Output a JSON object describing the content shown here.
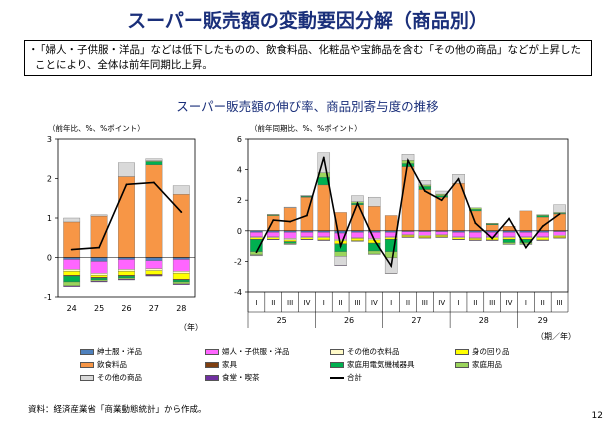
{
  "title": "スーパー販売額の変動要因分解（商品別）",
  "summary": {
    "bullet": "・",
    "text": "「婦人・子供服・洋品」などは低下したものの、飲食料品、化粧品や宝飾品を含む「その他の商品」などが上昇したことにより、全体は前年同期比上昇。"
  },
  "subtitle": "スーパー販売額の伸び率、商品別寄与度の推移",
  "source": "資料：経済産業省「商業動態統計」から作成。",
  "page_number": "12",
  "colors": {
    "mens": "#4f81bd",
    "womens": "#ff66ff",
    "other_clothing": "#fffac8",
    "personal": "#ffff00",
    "food": "#f79646",
    "furniture": "#7f3f10",
    "appliances": "#00b050",
    "household": "#9bd45c",
    "other": "#d9d9d9",
    "eating": "#7030a0",
    "total": "#000000"
  },
  "legend": [
    {
      "key": "mens",
      "label": "紳士服・洋品"
    },
    {
      "key": "womens",
      "label": "婦人・子供服・洋品"
    },
    {
      "key": "other_clothing",
      "label": "その他の衣料品"
    },
    {
      "key": "personal",
      "label": "身の回り品"
    },
    {
      "key": "food",
      "label": "飲食料品"
    },
    {
      "key": "furniture",
      "label": "家具"
    },
    {
      "key": "appliances",
      "label": "家庭用電気機械器具"
    },
    {
      "key": "household",
      "label": "家庭用品"
    },
    {
      "key": "other",
      "label": "その他の商品"
    },
    {
      "key": "eating",
      "label": "食堂・喫茶"
    },
    {
      "key": "total",
      "label": "合計"
    }
  ],
  "chart_data": [
    {
      "type": "bar",
      "stacked": true,
      "ylabel": "（前年比、%、%ポイント）",
      "xlabel": "（年）",
      "ylim": [
        -1,
        3
      ],
      "yticks": [
        -1,
        0,
        1,
        2,
        3
      ],
      "categories": [
        "24",
        "25",
        "26",
        "27",
        "28"
      ],
      "series": [
        {
          "key": "mens",
          "values": [
            -0.05,
            -0.1,
            -0.05,
            -0.08,
            -0.05
          ]
        },
        {
          "key": "womens",
          "values": [
            -0.25,
            -0.3,
            -0.25,
            -0.2,
            -0.3
          ]
        },
        {
          "key": "other_clothing",
          "values": [
            -0.05,
            -0.05,
            -0.05,
            -0.05,
            -0.05
          ]
        },
        {
          "key": "personal",
          "values": [
            -0.1,
            -0.05,
            -0.1,
            -0.1,
            -0.15
          ]
        },
        {
          "key": "food",
          "values": [
            0.9,
            1.05,
            2.05,
            2.35,
            1.6
          ]
        },
        {
          "key": "furniture",
          "values": [
            -0.02,
            -0.02,
            -0.02,
            -0.02,
            -0.02
          ]
        },
        {
          "key": "appliances",
          "values": [
            -0.15,
            -0.05,
            -0.05,
            0.08,
            -0.05
          ]
        },
        {
          "key": "household",
          "values": [
            -0.1,
            -0.03,
            -0.03,
            0.02,
            -0.05
          ]
        },
        {
          "key": "other",
          "values": [
            0.1,
            0.03,
            0.35,
            0.05,
            0.22
          ]
        },
        {
          "key": "eating",
          "values": [
            -0.02,
            -0.02,
            -0.02,
            -0.02,
            -0.02
          ]
        }
      ],
      "total": [
        0.2,
        0.25,
        1.85,
        1.9,
        1.15
      ]
    },
    {
      "type": "bar",
      "stacked": true,
      "ylabel": "（前年同期比、%、%ポイント）",
      "xlabel": "（期／年）",
      "ylim": [
        -4,
        6
      ],
      "yticks": [
        -4,
        -2,
        0,
        2,
        4,
        6
      ],
      "categories": [
        "I",
        "II",
        "III",
        "IV",
        "I",
        "II",
        "III",
        "IV",
        "I",
        "II",
        "III",
        "IV",
        "I",
        "II",
        "III",
        "IV",
        "I",
        "II",
        "III"
      ],
      "year_labels": [
        {
          "label": "25",
          "start": 0,
          "end": 3
        },
        {
          "label": "26",
          "start": 4,
          "end": 7
        },
        {
          "label": "27",
          "start": 8,
          "end": 11
        },
        {
          "label": "28",
          "start": 12,
          "end": 15
        },
        {
          "label": "29",
          "start": 16,
          "end": 18
        }
      ],
      "series": [
        {
          "key": "mens",
          "values": [
            -0.1,
            -0.1,
            -0.1,
            -0.1,
            -0.1,
            -0.15,
            -0.1,
            -0.1,
            -0.1,
            -0.05,
            -0.05,
            -0.05,
            -0.1,
            -0.1,
            -0.1,
            -0.1,
            -0.1,
            -0.1,
            -0.05
          ]
        },
        {
          "key": "womens",
          "values": [
            -0.3,
            -0.3,
            -0.4,
            -0.3,
            -0.3,
            -0.4,
            -0.35,
            -0.4,
            -0.3,
            -0.2,
            -0.25,
            -0.2,
            -0.3,
            -0.35,
            -0.3,
            -0.3,
            -0.3,
            -0.3,
            -0.25
          ]
        },
        {
          "key": "other_clothing",
          "values": [
            -0.05,
            -0.05,
            -0.1,
            -0.05,
            -0.05,
            -0.1,
            -0.05,
            -0.1,
            -0.05,
            -0.05,
            -0.05,
            -0.05,
            -0.05,
            -0.05,
            -0.05,
            -0.05,
            -0.05,
            -0.05,
            -0.05
          ]
        },
        {
          "key": "personal",
          "values": [
            -0.1,
            -0.1,
            -0.1,
            -0.1,
            -0.15,
            -0.2,
            -0.15,
            -0.2,
            -0.1,
            -0.1,
            -0.1,
            -0.1,
            -0.1,
            -0.1,
            -0.15,
            -0.1,
            -0.1,
            -0.15,
            -0.1
          ]
        },
        {
          "key": "food",
          "values": [
            0.0,
            1.0,
            1.5,
            2.2,
            3.0,
            1.2,
            1.7,
            1.6,
            1.0,
            4.2,
            2.7,
            2.2,
            3.1,
            1.3,
            0.4,
            0.3,
            1.3,
            0.9,
            1.1
          ]
        },
        {
          "key": "furniture",
          "values": [
            -0.02,
            -0.02,
            -0.02,
            -0.02,
            -0.02,
            -0.02,
            -0.02,
            -0.02,
            -0.02,
            -0.02,
            -0.02,
            -0.02,
            -0.02,
            -0.02,
            -0.02,
            -0.02,
            -0.02,
            -0.02,
            -0.02
          ]
        },
        {
          "key": "appliances",
          "values": [
            -0.8,
            0.05,
            -0.1,
            0.05,
            0.5,
            -0.5,
            0.1,
            -0.5,
            -0.8,
            0.2,
            0.2,
            0.1,
            0.0,
            0.1,
            0.05,
            -0.2,
            -0.2,
            0.1,
            0.05
          ]
        },
        {
          "key": "household",
          "values": [
            -0.2,
            0.02,
            -0.05,
            0.02,
            0.3,
            -0.3,
            0.1,
            -0.2,
            -0.4,
            0.2,
            0.1,
            0.1,
            0.0,
            0.1,
            0.05,
            -0.1,
            -0.1,
            0.05,
            0.05
          ]
        },
        {
          "key": "other",
          "values": [
            -0.05,
            0.0,
            0.05,
            0.05,
            1.3,
            -0.6,
            0.4,
            0.6,
            -1.0,
            0.4,
            0.3,
            0.2,
            0.6,
            0.0,
            0.0,
            0.0,
            0.0,
            0.0,
            0.5
          ]
        },
        {
          "key": "eating",
          "values": [
            -0.02,
            -0.02,
            -0.02,
            -0.02,
            -0.02,
            -0.02,
            -0.02,
            -0.02,
            -0.02,
            -0.02,
            -0.02,
            -0.02,
            -0.02,
            -0.02,
            -0.02,
            -0.02,
            -0.02,
            -0.02,
            -0.02
          ]
        }
      ],
      "total": [
        -1.4,
        0.7,
        0.6,
        1.0,
        4.8,
        -1.0,
        1.8,
        -0.6,
        -2.3,
        4.6,
        2.6,
        2.0,
        3.4,
        0.5,
        -0.5,
        0.8,
        -1.1,
        0.3,
        1.1
      ]
    }
  ]
}
